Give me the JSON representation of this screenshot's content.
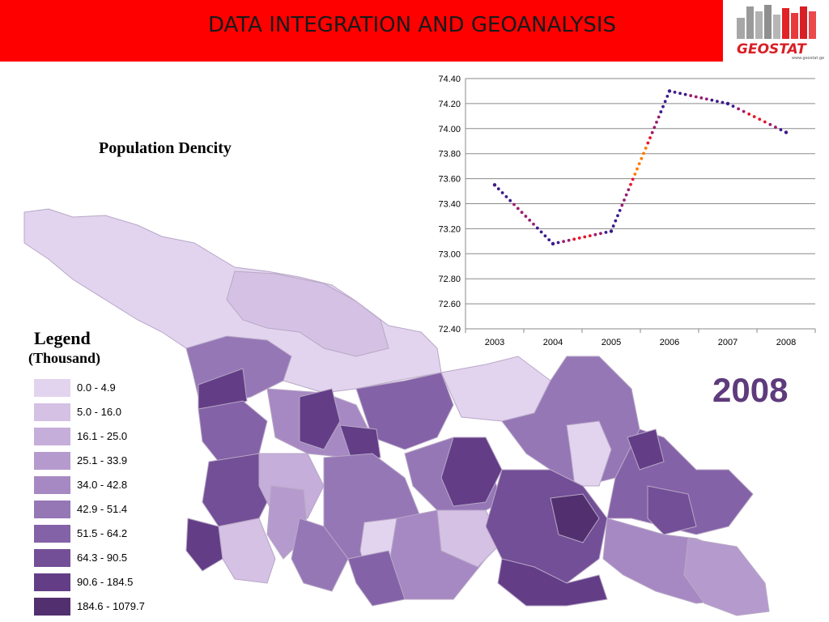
{
  "header": {
    "title": "DATA  INTEGRATION AND GEOANALYSIS",
    "logo_text": "GEOSTAT",
    "logo_url": "www.geostat.ge",
    "bar_color": "#ff0000"
  },
  "map": {
    "title": "Population Dencity",
    "year": "2008",
    "year_color": "#5e3b7c"
  },
  "legend": {
    "title": "Legend",
    "subtitle": "(Thousand)",
    "items": [
      {
        "label": "0.0 - 4.9",
        "color": "#e2d4ee"
      },
      {
        "label": "5.0 - 16.0",
        "color": "#d4c1e4"
      },
      {
        "label": "16.1 - 25.0",
        "color": "#c5aed9"
      },
      {
        "label": "25.1 - 33.9",
        "color": "#b59bcd"
      },
      {
        "label": "34.0 - 42.8",
        "color": "#a689c2"
      },
      {
        "label": "42.9 - 51.4",
        "color": "#9577b6"
      },
      {
        "label": "51.5 - 64.2",
        "color": "#8462a7"
      },
      {
        "label": "64.3 - 90.5",
        "color": "#734f97"
      },
      {
        "label": "90.6 - 184.5",
        "color": "#633e87"
      },
      {
        "label": "184.6 - 1079.7",
        "color": "#52306f"
      }
    ]
  },
  "chart_data": {
    "type": "line",
    "title": "",
    "xlabel": "",
    "ylabel": "",
    "x": [
      "2003",
      "2004",
      "2005",
      "2006",
      "2007",
      "2008"
    ],
    "series": [
      {
        "values": [
          73.55,
          73.08,
          73.18,
          74.3,
          74.2,
          73.97
        ]
      }
    ],
    "ylim": [
      72.4,
      74.4
    ],
    "yticks": [
      "72.40",
      "72.60",
      "72.80",
      "73.00",
      "73.20",
      "73.40",
      "73.60",
      "73.80",
      "74.00",
      "74.20",
      "74.40"
    ],
    "grid": true,
    "line_style": "dotted",
    "line_colors": [
      "#3d1a8c",
      "#9b1b6e",
      "#e8152a",
      "#ff7a00"
    ]
  }
}
